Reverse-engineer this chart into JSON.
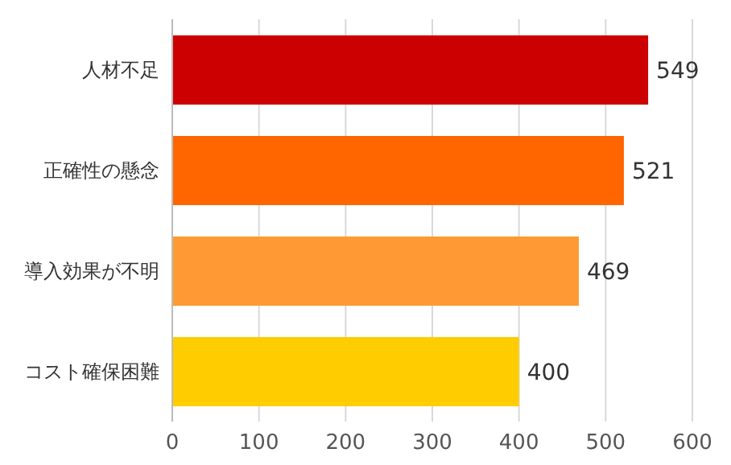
{
  "chart_data": {
    "type": "bar",
    "orientation": "horizontal",
    "categories": [
      "人材不足",
      "正確性の懸念",
      "導入効果が不明",
      "コスト確保困難"
    ],
    "values": [
      549,
      521,
      469,
      400
    ],
    "colors": [
      "#cc0000",
      "#ff6600",
      "#ff9933",
      "#ffcc00"
    ],
    "xlim": [
      0,
      600
    ],
    "xticks": [
      0,
      100,
      200,
      300,
      400,
      500,
      600
    ],
    "grid": "x",
    "data_labels": true
  }
}
